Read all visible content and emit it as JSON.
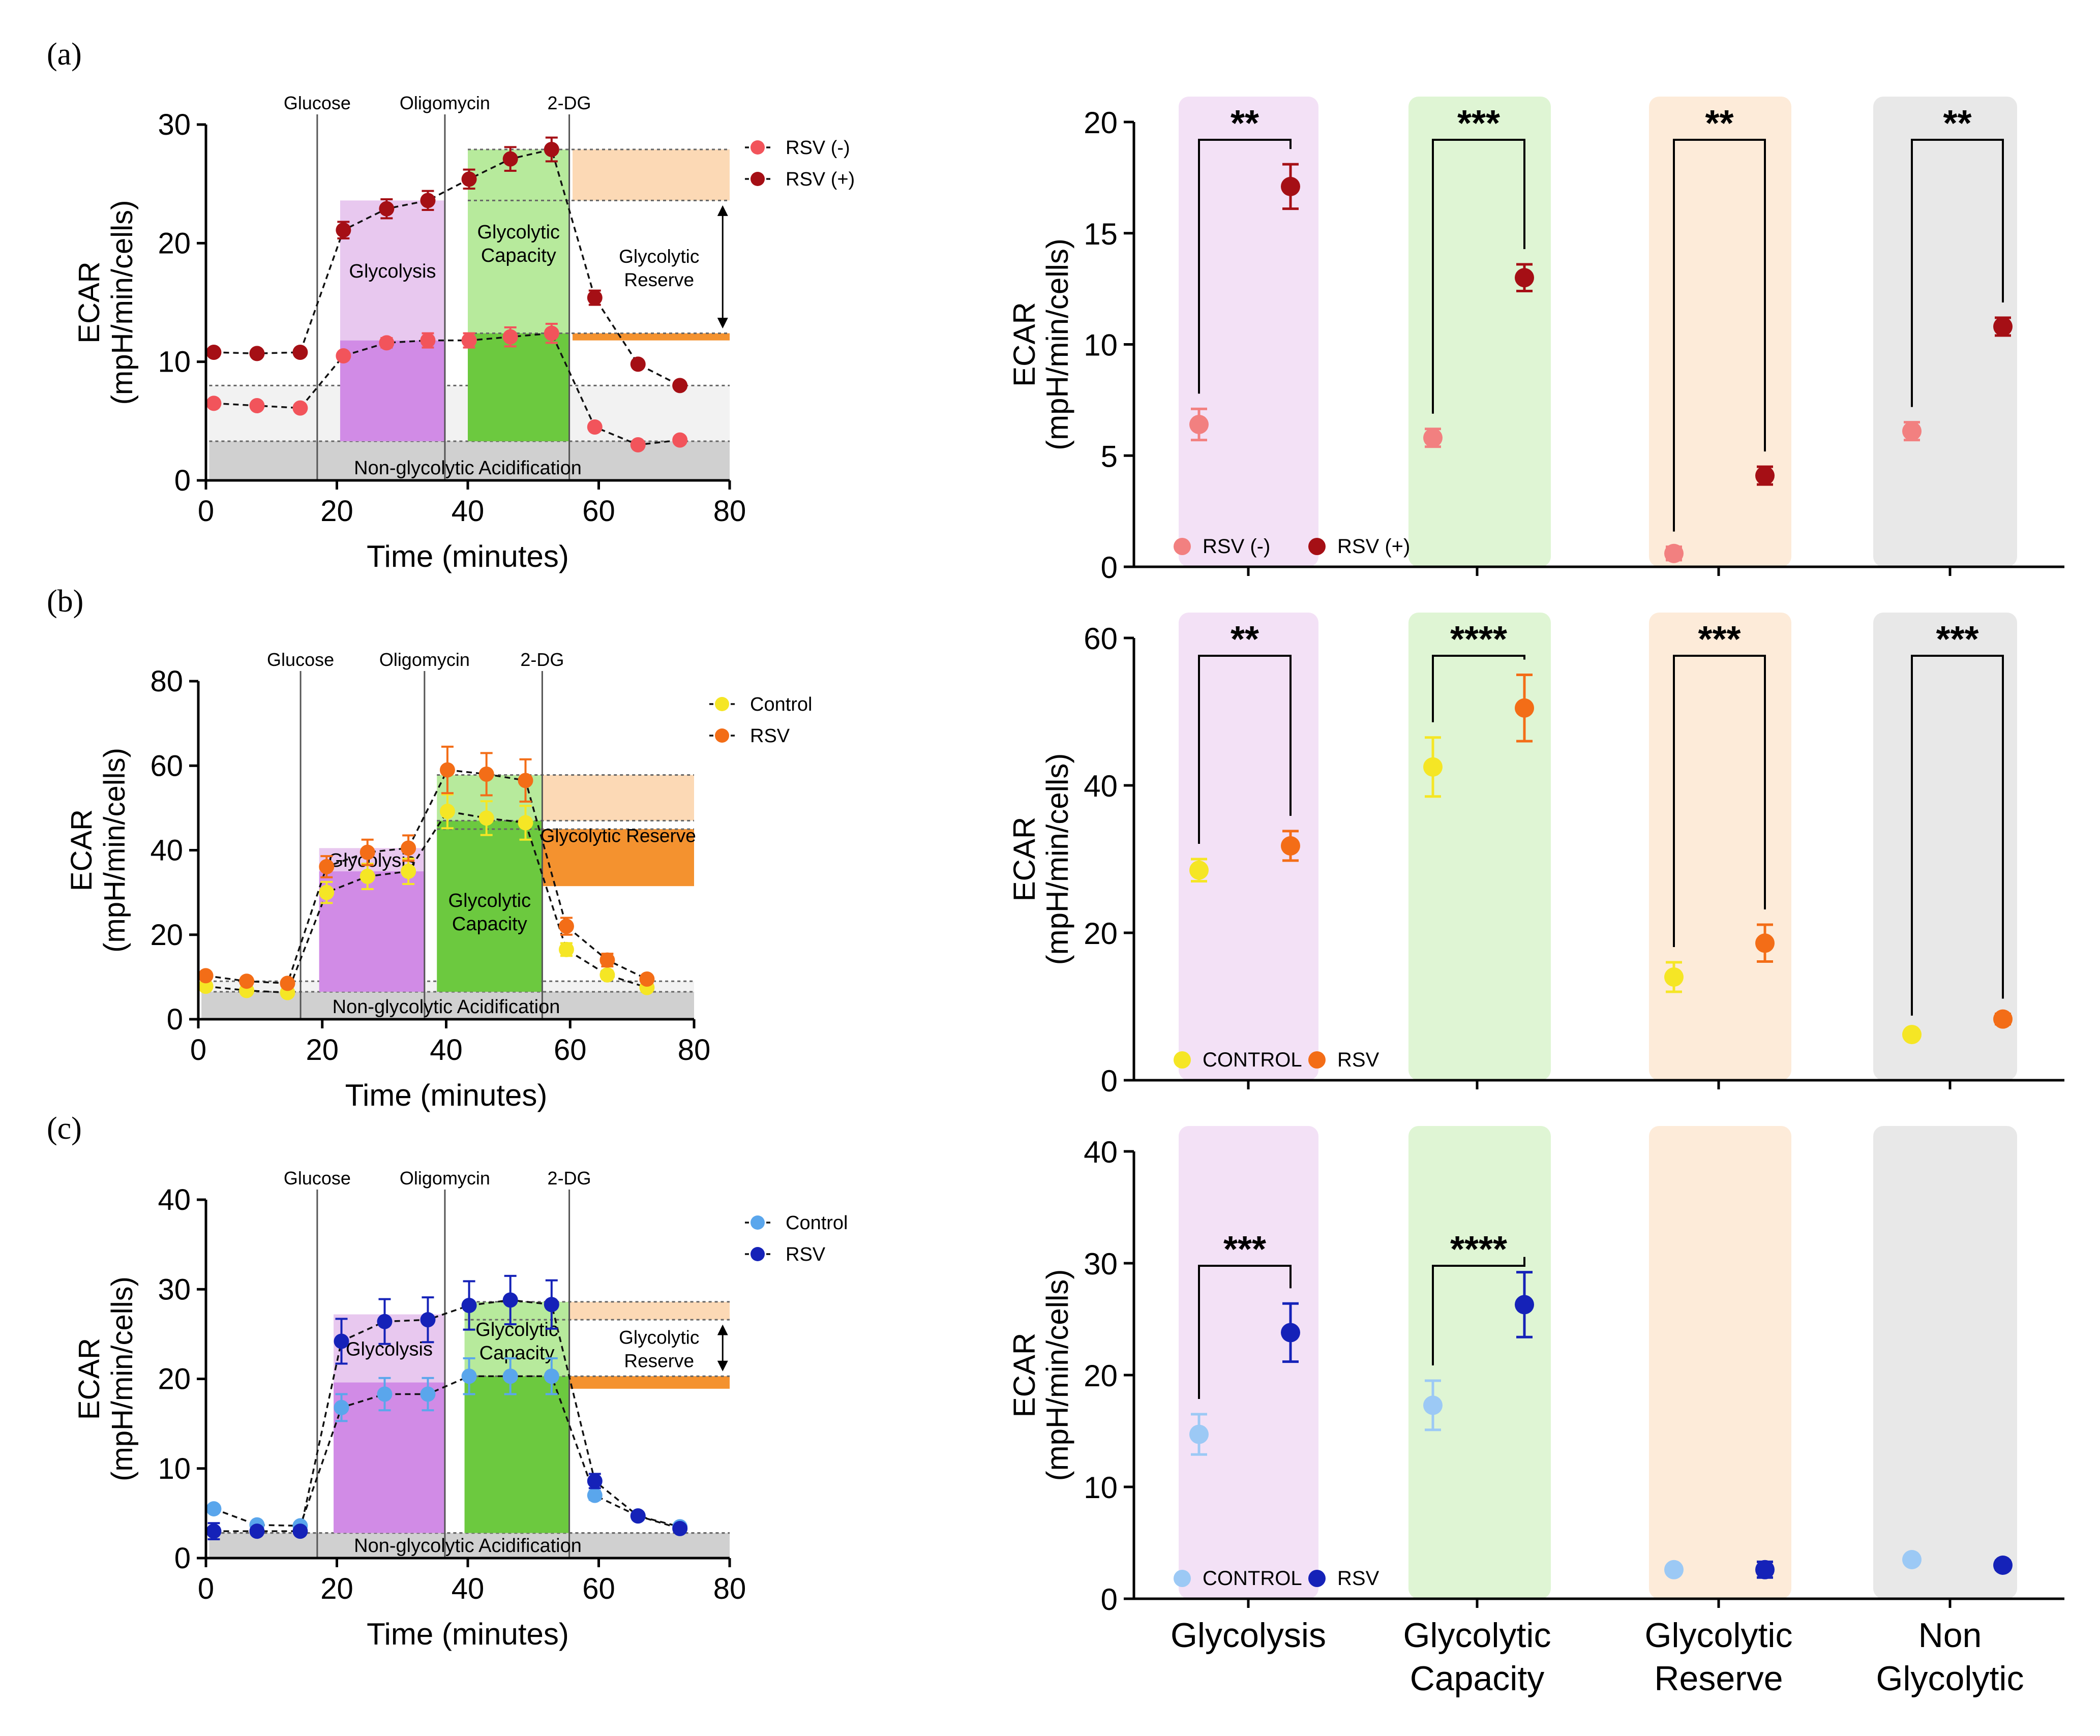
{
  "figure": {
    "panel_labels": [
      "(a)",
      "(b)",
      "(c)"
    ],
    "region_labels": {
      "glycolysis": "Glycolysis",
      "capacity_line1": "Glycolytic",
      "capacity_line2": "Capacity",
      "reserve_line1": "Glycolytic",
      "reserve_line2": "Reserve",
      "reserve_inline": "Glycolytic Reserve",
      "non_glycolytic": "Non-glycolytic Acidification"
    },
    "injections": [
      "Glucose",
      "Oligomycin",
      "2-DG"
    ],
    "x_axis_label": "Time (minutes)",
    "y_axis_label_line1": "ECAR",
    "y_axis_label_line2": "(mpH/min/cells)",
    "summary_categories": [
      [
        "Glycolysis"
      ],
      [
        "Glycolytic",
        "Capacity"
      ],
      [
        "Glycolytic",
        "Reserve"
      ],
      [
        "Non",
        "Glycolytic"
      ]
    ],
    "colors": {
      "glycolysis_band": "#f3e1f6",
      "capacity_band": "#dff5d4",
      "reserve_band": "#fdebd9",
      "nonglyc_band": "#e8e8e8",
      "glycolysis_light": "#e8c8ef",
      "glycolysis_dark": "#d18be6",
      "capacity_light": "#b7ea9c",
      "capacity_dark": "#6cc93f",
      "reserve_light": "#fcd9b5",
      "reserve_dark": "#f4922f",
      "nonglyc_dark": "#d0d0d0",
      "nonglyc_light": "#f2f2f2"
    }
  },
  "chart_data": [
    {
      "panel": "(a)",
      "type": "line",
      "title": "",
      "xlabel": "Time (minutes)",
      "ylabel": "ECAR (mpH/min/cells)",
      "xlim": [
        0,
        80
      ],
      "ylim": [
        0,
        30
      ],
      "xticks": [
        0,
        20,
        40,
        60,
        80
      ],
      "yticks": [
        0,
        10,
        20,
        30
      ],
      "injections": [
        {
          "label": "Glucose",
          "x": 17
        },
        {
          "label": "Oligomycin",
          "x": 36.5
        },
        {
          "label": "2-DG",
          "x": 55.5
        }
      ],
      "legend_position": "top-right",
      "reserve_label_mode": "arrow",
      "series": [
        {
          "name": "RSV (-)",
          "color": "#f2545b",
          "x": [
            1.2,
            7.8,
            14.4,
            21,
            27.6,
            33.9,
            40.2,
            46.5,
            52.8,
            59.4,
            66,
            72.4
          ],
          "y": [
            6.5,
            6.3,
            6.1,
            10.5,
            11.6,
            11.8,
            11.8,
            12.1,
            12.4,
            4.5,
            3.0,
            3.4
          ],
          "err": [
            0.2,
            0.2,
            0.2,
            0.3,
            0.4,
            0.6,
            0.6,
            0.8,
            0.8,
            0.2,
            0.2,
            0.2
          ]
        },
        {
          "name": "RSV (+)",
          "color": "#a50f15",
          "x": [
            1.2,
            7.8,
            14.4,
            21,
            27.6,
            33.9,
            40.2,
            46.5,
            52.8,
            59.4,
            66,
            72.4
          ],
          "y": [
            10.8,
            10.7,
            10.8,
            21.1,
            22.9,
            23.6,
            25.4,
            27.1,
            27.9,
            15.4,
            9.8,
            8.0
          ],
          "err": [
            0.2,
            0.2,
            0.2,
            0.7,
            0.8,
            0.8,
            0.8,
            1.0,
            1.0,
            0.6,
            0.3,
            0.2
          ]
        }
      ],
      "regions": {
        "glycolysis": {
          "x": [
            20.5,
            36.5
          ],
          "ref_upper": [
            10.8,
            23.6
          ],
          "ref_lower": [
            6.5,
            11.8
          ]
        },
        "capacity": {
          "x": [
            40,
            55.5
          ],
          "ref_upper": [
            10.8,
            27.9
          ],
          "ref_lower": [
            6.5,
            12.4
          ]
        },
        "reserve": {
          "x": [
            56,
            80
          ],
          "upper": [
            23.6,
            27.9
          ],
          "lower": [
            11.8,
            12.4
          ]
        },
        "nonglyc": {
          "x": [
            0.5,
            80
          ],
          "dark_top": 3.3,
          "light_top": 8.0
        }
      }
    },
    {
      "panel": "(b)",
      "type": "line",
      "title": "",
      "xlabel": "Time (minutes)",
      "ylabel": "ECAR (mpH/min/cells)",
      "xlim": [
        0,
        80
      ],
      "ylim": [
        0,
        80
      ],
      "xticks": [
        0,
        20,
        40,
        60,
        80
      ],
      "yticks": [
        0,
        20,
        40,
        60,
        80
      ],
      "injections": [
        {
          "label": "Glucose",
          "x": 16.5
        },
        {
          "label": "Oligomycin",
          "x": 36.5
        },
        {
          "label": "2-DG",
          "x": 55.5
        }
      ],
      "legend_position": "top-right",
      "reserve_label_mode": "inline",
      "series": [
        {
          "name": "Control",
          "color": "#f5e625",
          "x": [
            1.2,
            7.8,
            14.4,
            20.7,
            27.3,
            33.9,
            40.2,
            46.5,
            52.8,
            59.4,
            66,
            72.4
          ],
          "y": [
            7.8,
            6.8,
            6.3,
            30.0,
            33.8,
            35.0,
            49.2,
            47.6,
            46.5,
            16.5,
            10.5,
            7.5
          ],
          "err": [
            0.5,
            0.5,
            0.5,
            2.5,
            3.0,
            3.0,
            4.0,
            4.0,
            4.0,
            1.5,
            1.0,
            0.5
          ]
        },
        {
          "name": "RSV",
          "color": "#f36d17",
          "x": [
            1.2,
            7.8,
            14.4,
            20.7,
            27.3,
            33.9,
            40.2,
            46.5,
            52.8,
            59.4,
            66,
            72.4
          ],
          "y": [
            10.3,
            9.0,
            8.5,
            36.1,
            39.5,
            40.5,
            59.0,
            58.0,
            56.5,
            22.0,
            14.0,
            9.5
          ],
          "err": [
            0.5,
            0.5,
            0.5,
            2.5,
            3.0,
            3.0,
            5.5,
            5.0,
            5.0,
            2.0,
            1.5,
            0.5
          ]
        }
      ],
      "regions": {
        "glycolysis": {
          "x": [
            19.5,
            36.5
          ],
          "ref_upper": [
            9.0,
            40.5
          ],
          "ref_lower": [
            9.0,
            35.0
          ]
        },
        "capacity": {
          "x": [
            38.5,
            55.5
          ],
          "ref_upper": [
            9.0,
            57.8
          ],
          "ref_lower": [
            9.0,
            47.0
          ]
        },
        "reserve": {
          "x": [
            55.5,
            80
          ],
          "upper": [
            47.0,
            57.8
          ],
          "lower": [
            31.5,
            45.0
          ]
        },
        "nonglyc": {
          "x": [
            0.5,
            80
          ],
          "dark_top": 6.5,
          "light_top": 9.0
        }
      }
    },
    {
      "panel": "(c)",
      "type": "line",
      "title": "",
      "xlabel": "Time (minutes)",
      "ylabel": "ECAR (mpH/min/cells)",
      "xlim": [
        0,
        80
      ],
      "ylim": [
        0,
        40
      ],
      "xticks": [
        0,
        20,
        40,
        60,
        80
      ],
      "yticks": [
        0,
        10,
        20,
        30,
        40
      ],
      "injections": [
        {
          "label": "Glucose",
          "x": 17
        },
        {
          "label": "Oligomycin",
          "x": 36.5
        },
        {
          "label": "2-DG",
          "x": 55.5
        }
      ],
      "legend_position": "top-right",
      "reserve_label_mode": "arrow",
      "series": [
        {
          "name": "Control",
          "color": "#5aa6ec",
          "x": [
            1.2,
            7.8,
            14.4,
            20.7,
            27.3,
            33.9,
            40.2,
            46.5,
            52.8,
            59.4,
            66,
            72.4
          ],
          "y": [
            5.5,
            3.7,
            3.6,
            16.8,
            18.3,
            18.3,
            20.3,
            20.3,
            20.3,
            7.0,
            4.7,
            3.5
          ],
          "err": [
            0.3,
            0.3,
            0.3,
            1.5,
            1.8,
            1.8,
            2.0,
            2.0,
            2.0,
            0.5,
            0.4,
            0.3
          ]
        },
        {
          "name": "RSV",
          "color": "#1522b8",
          "x": [
            1.2,
            7.8,
            14.4,
            20.7,
            27.3,
            33.9,
            40.2,
            46.5,
            52.8,
            59.4,
            66,
            72.4
          ],
          "y": [
            3.0,
            3.0,
            3.0,
            24.2,
            26.4,
            26.6,
            28.2,
            28.8,
            28.3,
            8.6,
            4.7,
            3.3
          ],
          "err": [
            0.9,
            0.3,
            0.3,
            2.5,
            2.5,
            2.5,
            2.7,
            2.7,
            2.7,
            0.8,
            0.4,
            0.3
          ]
        }
      ],
      "regions": {
        "glycolysis": {
          "x": [
            19.5,
            36.5
          ],
          "ref_upper": [
            3.0,
            27.2
          ],
          "ref_lower": [
            3.0,
            19.6
          ]
        },
        "capacity": {
          "x": [
            39.5,
            55.5
          ],
          "ref_upper": [
            3.0,
            28.6
          ],
          "ref_lower": [
            3.0,
            20.3
          ]
        },
        "reserve": {
          "x": [
            55.5,
            80
          ],
          "upper": [
            26.6,
            28.6
          ],
          "lower": [
            18.9,
            20.3
          ]
        },
        "nonglyc": {
          "x": [
            0.5,
            80
          ],
          "dark_top": 2.8,
          "light_top": 2.8
        }
      }
    },
    {
      "panel": "(a) summary",
      "type": "scatter",
      "title": "",
      "xlabel": "",
      "ylabel": "ECAR (mpH/min/cells)",
      "ylim": [
        0,
        20
      ],
      "yticks": [
        0,
        5,
        10,
        15,
        20
      ],
      "categories": [
        "Glycolysis",
        "Glycolytic Capacity",
        "Glycolytic Reserve",
        "Non Glycolytic"
      ],
      "legend_position": "bottom-left",
      "series": [
        {
          "name": "RSV (-)",
          "color": "#f28080",
          "values": [
            6.4,
            5.8,
            0.6,
            6.1
          ],
          "err": [
            0.7,
            0.4,
            0.3,
            0.4
          ]
        },
        {
          "name": "RSV (+)",
          "color": "#a50f15",
          "values": [
            17.1,
            13.0,
            4.1,
            10.8
          ],
          "err": [
            1.0,
            0.6,
            0.4,
            0.4
          ]
        }
      ],
      "significance": [
        "**",
        "***",
        "**",
        "**"
      ]
    },
    {
      "panel": "(b) summary",
      "type": "scatter",
      "title": "",
      "xlabel": "",
      "ylabel": "ECAR (mpH/min/cells)",
      "ylim": [
        0,
        60
      ],
      "yticks": [
        0,
        20,
        40,
        60
      ],
      "categories": [
        "Glycolysis",
        "Glycolytic Capacity",
        "Glycolytic Reserve",
        "Non Glycolytic"
      ],
      "legend_position": "bottom-left",
      "series": [
        {
          "name": "CONTROL",
          "color": "#f5e625",
          "values": [
            28.5,
            42.5,
            14.0,
            6.2
          ],
          "err": [
            1.5,
            4.0,
            2.0,
            0.5
          ]
        },
        {
          "name": "RSV",
          "color": "#f36d17",
          "values": [
            31.8,
            50.5,
            18.6,
            8.3
          ],
          "err": [
            2.0,
            4.5,
            2.5,
            0.7
          ]
        }
      ],
      "significance": [
        "**",
        "****",
        "***",
        "***"
      ]
    },
    {
      "panel": "(c) summary",
      "type": "scatter",
      "title": "",
      "xlabel": "",
      "ylabel": "ECAR (mpH/min/cells)",
      "ylim": [
        0,
        40
      ],
      "yticks": [
        0,
        10,
        20,
        30,
        40
      ],
      "xticklabels": [
        "Glycolysis",
        "Glycolytic Capacity",
        "Glycolytic Reserve",
        "Non Glycolytic"
      ],
      "categories": [
        "Glycolysis",
        "Glycolytic Capacity",
        "Glycolytic Reserve",
        "Non Glycolytic"
      ],
      "legend_position": "bottom-left",
      "series": [
        {
          "name": "CONTROL",
          "color": "#9cc9f5",
          "values": [
            14.7,
            17.3,
            2.6,
            3.5
          ],
          "err": [
            1.8,
            2.2,
            0.3,
            0.3
          ]
        },
        {
          "name": "RSV",
          "color": "#1522b8",
          "values": [
            23.8,
            26.3,
            2.6,
            3.0
          ],
          "err": [
            2.6,
            2.9,
            0.7,
            0.4
          ]
        }
      ],
      "significance": [
        "***",
        "****",
        "",
        ""
      ]
    }
  ]
}
